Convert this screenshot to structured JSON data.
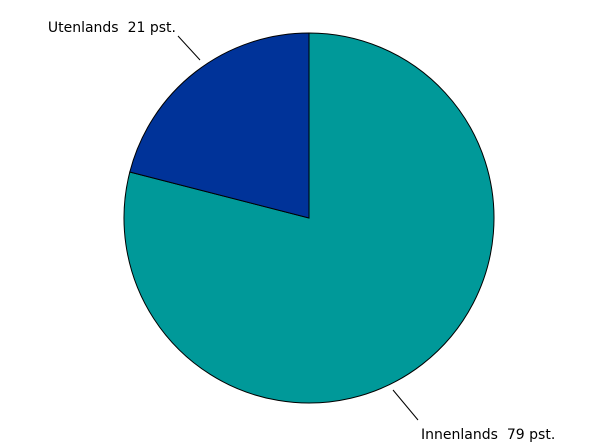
{
  "chart_data": {
    "type": "pie",
    "categories": [
      "Innenlands",
      "Utenlands"
    ],
    "values": [
      79,
      21
    ],
    "value_labels": [
      "79 pst.",
      "21 pst."
    ],
    "colors": [
      "#009999",
      "#003399"
    ]
  }
}
